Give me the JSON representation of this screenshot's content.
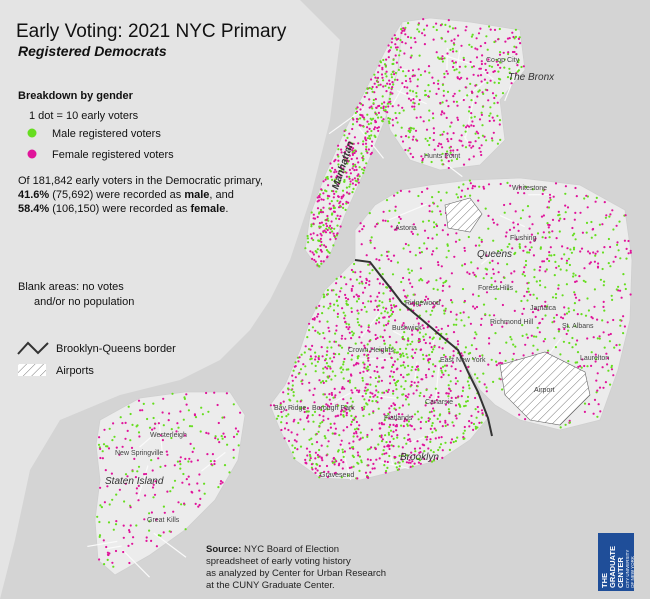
{
  "title": "Early Voting: 2021 NYC Primary",
  "subtitle": "Registered Democrats",
  "legend": {
    "heading": "Breakdown by gender",
    "scale": "1 dot = 10 early voters",
    "items": [
      {
        "label": "Male registered voters",
        "color": "#66dd1f"
      },
      {
        "label": "Female registered voters",
        "color": "#e0149a"
      }
    ]
  },
  "summary": {
    "line1": "Of 181,842 early voters in the Democratic primary,",
    "line2": [
      {
        "text": "41.6%",
        "bold": true
      },
      {
        "text": " (75,692) were recorded as ",
        "bold": false
      },
      {
        "text": "male",
        "bold": true
      },
      {
        "text": ", and",
        "bold": false
      }
    ],
    "line3": [
      {
        "text": "58.4%",
        "bold": true
      },
      {
        "text": " (106,150) were recorded as ",
        "bold": false
      },
      {
        "text": "female",
        "bold": true
      },
      {
        "text": ".",
        "bold": false
      }
    ]
  },
  "notes": {
    "blank_areas": [
      "Blank areas: no votes",
      "and/or no population"
    ],
    "border": "Brooklyn-Queens border",
    "airports": "Airports"
  },
  "map_labels": {
    "boroughs": [
      "Manhattan",
      "The Bronx",
      "Queens",
      "Brooklyn",
      "Staten Island"
    ],
    "places": [
      "Hunts Point",
      "Astoria",
      "Ridgewood",
      "Flushing",
      "Forest Hills",
      "Jamaica",
      "Richmond Hill",
      "Bushwick",
      "East New York",
      "Canarsie",
      "Flatlands",
      "Gravesend",
      "Borough Park",
      "Bay Ridge",
      "Westerleigh",
      "New Springville",
      "Great Kills",
      "Airport",
      "Co-op City",
      "Whitestone",
      "St. Albans",
      "Laurelton",
      "Crown Heights"
    ]
  },
  "source": {
    "label": "Source:",
    "lines": [
      "NYC Board of Election",
      "spreadsheet of early voting history",
      "as analyzed by Center for Urban Research",
      "at the CUNY Graduate Center."
    ]
  },
  "logo": {
    "lines": [
      "THE",
      "GRADUATE",
      "CENTER"
    ],
    "sub": [
      "CITY UNIVERSITY",
      "OF NEW YORK"
    ]
  }
}
